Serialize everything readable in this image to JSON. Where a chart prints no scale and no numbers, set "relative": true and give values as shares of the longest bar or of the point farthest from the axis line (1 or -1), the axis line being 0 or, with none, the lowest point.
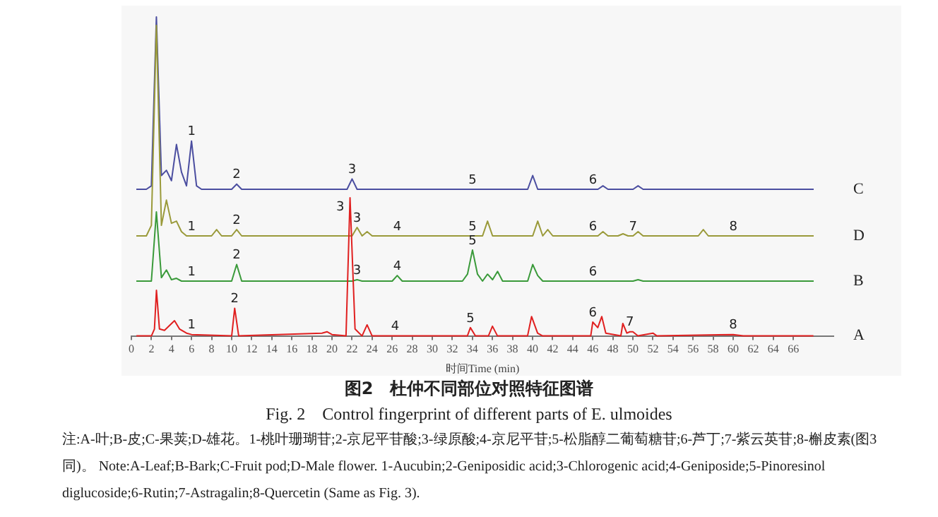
{
  "chart_data": [
    {
      "type": "line",
      "relative": true,
      "categories": [
        null,
        null,
        null,
        null,
        null,
        null,
        null,
        null,
        null,
        null,
        null,
        "1",
        null,
        null,
        null,
        null,
        null,
        null,
        null,
        null,
        "2",
        null,
        null,
        null,
        null,
        null,
        null,
        null,
        null,
        null,
        null,
        null,
        null,
        null,
        null,
        null,
        null,
        null,
        null,
        null,
        null,
        null,
        null,
        "3",
        null,
        null,
        null,
        null,
        null,
        null,
        null,
        null,
        null,
        null,
        null,
        null,
        null,
        null,
        null,
        null,
        null,
        null,
        null,
        null,
        null,
        null,
        null,
        "5",
        null,
        null,
        null,
        null,
        null,
        null,
        null,
        null,
        null,
        null,
        null,
        null,
        null,
        null,
        null,
        null,
        null,
        null,
        null,
        null,
        null,
        null,
        null,
        "6",
        null,
        null,
        null,
        null,
        null,
        null,
        null,
        null,
        null,
        null,
        null,
        null,
        null,
        null,
        null,
        null,
        null,
        null,
        null,
        null,
        null,
        null,
        null,
        null,
        null,
        null,
        null,
        null,
        null,
        null,
        null,
        null,
        null,
        null,
        null,
        null,
        null,
        null,
        null,
        null,
        null,
        null,
        null,
        null
      ],
      "series": [
        {
          "name": "C",
          "color": "#4b4ea0",
          "values": [
            0,
            0,
            0,
            0.02,
            1,
            0.08,
            0.11,
            0.05,
            0.26,
            0.1,
            0.02,
            0.28,
            0.02,
            0,
            0,
            0,
            0,
            0,
            0,
            0,
            0.03,
            0,
            0,
            0,
            0,
            0,
            0,
            0,
            0,
            0,
            0,
            0,
            0,
            0,
            0,
            0,
            0,
            0,
            0,
            0,
            0,
            0,
            0,
            0.06,
            0,
            0,
            0,
            0,
            0,
            0,
            0,
            0,
            0,
            0,
            0,
            0,
            0,
            0,
            0,
            0,
            0,
            0,
            0,
            0,
            0,
            0,
            0,
            0,
            0,
            0,
            0,
            0,
            0,
            0,
            0,
            0,
            0,
            0,
            0,
            0.08,
            0,
            0,
            0,
            0,
            0,
            0,
            0,
            0,
            0,
            0,
            0,
            0,
            0,
            0.02,
            0,
            0,
            0,
            0,
            0,
            0,
            0.02,
            0,
            0,
            0,
            0,
            0,
            0,
            0,
            0,
            0,
            0,
            0,
            0,
            0,
            0,
            0,
            0,
            0,
            0,
            0,
            0,
            0,
            0,
            0,
            0,
            0,
            0,
            0,
            0,
            0,
            0,
            0,
            0,
            0,
            0,
            0
          ]
        }
      ]
    },
    {
      "type": "line",
      "relative": true,
      "categories": [
        null,
        null,
        null,
        null,
        null,
        null,
        null,
        null,
        null,
        null,
        null,
        "1",
        null,
        null,
        null,
        null,
        null,
        null,
        null,
        null,
        "2",
        null,
        null,
        null,
        null,
        null,
        null,
        null,
        null,
        null,
        null,
        null,
        null,
        null,
        null,
        null,
        null,
        null,
        null,
        null,
        null,
        null,
        null,
        null,
        "3",
        null,
        null,
        null,
        null,
        null,
        null,
        null,
        "4",
        null,
        null,
        null,
        null,
        null,
        null,
        null,
        null,
        null,
        null,
        null,
        null,
        null,
        null,
        "5",
        null,
        null,
        null,
        null,
        null,
        null,
        null,
        null,
        null,
        null,
        null,
        null,
        null,
        null,
        null,
        null,
        null,
        null,
        null,
        null,
        null,
        null,
        null,
        "6",
        null,
        null,
        null,
        null,
        null,
        null,
        null,
        "7",
        null,
        null,
        null,
        null,
        null,
        null,
        null,
        null,
        null,
        null,
        null,
        null,
        null,
        null,
        null,
        null,
        null,
        null,
        null,
        "8",
        null,
        null,
        null,
        null,
        null,
        null,
        null,
        null,
        null,
        null,
        null,
        null,
        null,
        null,
        null,
        null
      ],
      "series": [
        {
          "name": "D",
          "color": "#9a9a3a",
          "values": [
            0,
            0,
            0,
            0.05,
            1,
            0.05,
            0.17,
            0.06,
            0.07,
            0.02,
            0,
            0,
            0,
            0,
            0,
            0,
            0.03,
            0,
            0,
            0,
            0.03,
            0,
            0,
            0,
            0,
            0,
            0,
            0,
            0,
            0,
            0,
            0,
            0,
            0,
            0,
            0,
            0,
            0,
            0,
            0,
            0,
            0,
            0,
            0,
            0.04,
            0,
            0.02,
            0,
            0,
            0,
            0,
            0,
            0,
            0,
            0,
            0,
            0,
            0,
            0,
            0,
            0,
            0,
            0,
            0,
            0,
            0,
            0,
            0,
            0,
            0,
            0.07,
            0,
            0,
            0,
            0,
            0,
            0,
            0,
            0,
            0,
            0.07,
            0,
            0.03,
            0,
            0,
            0,
            0,
            0,
            0,
            0,
            0,
            0,
            0,
            0.02,
            0,
            0,
            0,
            0.01,
            0,
            0,
            0.02,
            0,
            0,
            0,
            0,
            0,
            0,
            0,
            0,
            0,
            0,
            0,
            0,
            0.03,
            0,
            0,
            0,
            0,
            0,
            0,
            0,
            0,
            0,
            0,
            0,
            0,
            0,
            0,
            0,
            0,
            0,
            0,
            0,
            0,
            0,
            0
          ]
        }
      ]
    },
    {
      "type": "line",
      "relative": true,
      "categories": [
        null,
        null,
        null,
        null,
        null,
        null,
        null,
        null,
        null,
        null,
        null,
        "1",
        null,
        null,
        null,
        null,
        null,
        null,
        null,
        null,
        "2",
        null,
        null,
        null,
        null,
        null,
        null,
        null,
        null,
        null,
        null,
        null,
        null,
        null,
        null,
        null,
        null,
        null,
        null,
        null,
        null,
        null,
        null,
        null,
        "3",
        null,
        null,
        null,
        null,
        null,
        null,
        null,
        "4",
        null,
        null,
        null,
        null,
        null,
        null,
        null,
        null,
        null,
        null,
        null,
        null,
        null,
        null,
        "5",
        null,
        null,
        null,
        null,
        null,
        null,
        null,
        null,
        null,
        null,
        null,
        null,
        null,
        null,
        null,
        null,
        null,
        null,
        null,
        null,
        null,
        null,
        null,
        "6",
        null,
        null,
        null,
        null,
        null,
        null,
        null,
        null,
        null,
        null,
        null,
        null,
        null,
        null,
        null,
        null,
        null,
        null,
        null,
        null,
        null,
        null,
        null,
        null,
        null,
        null,
        null,
        null,
        null,
        null,
        null,
        null,
        null,
        null,
        null,
        null,
        null,
        null,
        null,
        null,
        null,
        null,
        null,
        null
      ],
      "series": [
        {
          "name": "B",
          "color": "#3a9a3a",
          "values": [
            0,
            0,
            0,
            0,
            1,
            0.05,
            0.16,
            0.02,
            0.04,
            0,
            0,
            0,
            0,
            0,
            0,
            0,
            0,
            0,
            0,
            0,
            0.24,
            0,
            0,
            0,
            0,
            0,
            0,
            0,
            0,
            0,
            0,
            0,
            0,
            0,
            0,
            0,
            0,
            0,
            0,
            0,
            0,
            0,
            0,
            0,
            0.02,
            0,
            0,
            0,
            0,
            0,
            0,
            0,
            0.08,
            0,
            0,
            0,
            0,
            0,
            0,
            0,
            0,
            0,
            0,
            0,
            0,
            0,
            0.1,
            0.45,
            0.1,
            0,
            0.1,
            0.02,
            0.14,
            0,
            0,
            0,
            0,
            0,
            0,
            0.24,
            0.08,
            0,
            0,
            0,
            0,
            0,
            0,
            0,
            0,
            0,
            0,
            0,
            0,
            0,
            0,
            0,
            0,
            0,
            0,
            0,
            0.02,
            0,
            0,
            0,
            0,
            0,
            0,
            0,
            0,
            0,
            0,
            0,
            0,
            0,
            0,
            0,
            0,
            0,
            0,
            0,
            0,
            0,
            0,
            0,
            0,
            0,
            0,
            0,
            0,
            0,
            0,
            0,
            0,
            0,
            0,
            0
          ]
        }
      ]
    },
    {
      "type": "line",
      "relative": true,
      "tick_labels": "x",
      "xlim": [
        0,
        70
      ],
      "xticks": [
        0,
        2,
        4,
        6,
        8,
        10,
        12,
        14,
        16,
        18,
        20,
        22,
        24,
        26,
        28,
        30,
        32,
        34,
        36,
        38,
        40,
        42,
        44,
        46,
        48,
        50,
        52,
        54,
        56,
        58,
        60,
        62,
        64,
        66
      ],
      "xlabel": "时间Time (min)",
      "title": "图2　杜仲不同部位对照特征图谱",
      "subtitle": "Fig. 2　Control fingerprint of different parts of E. ulmoides",
      "series": [
        {
          "name": "A",
          "color": "#e02020",
          "x": [
            0.5,
            2.0,
            2.3,
            2.5,
            2.8,
            3.3,
            4.3,
            4.8,
            5.5,
            6.0,
            10.0,
            10.3,
            10.7,
            19.0,
            19.5,
            20.0,
            21.4,
            21.8,
            22.3,
            23.0,
            23.5,
            24.0,
            26.3,
            33.5,
            33.8,
            34.3,
            35.6,
            36.0,
            36.5,
            39.5,
            39.9,
            40.5,
            41.0,
            45.8,
            46.0,
            46.5,
            46.9,
            47.3,
            48.8,
            49.0,
            49.4,
            49.7,
            50.0,
            50.5,
            52.0,
            52.4,
            60.0,
            61.0,
            68.0
          ],
          "values": [
            0,
            0,
            0.05,
            0.33,
            0.05,
            0.04,
            0.11,
            0.05,
            0.02,
            0.01,
            0,
            0.2,
            0,
            0.02,
            0.03,
            0.01,
            0,
            1,
            0.05,
            0,
            0.08,
            0,
            0,
            0,
            0.06,
            0,
            0,
            0.07,
            0,
            0,
            0.14,
            0.02,
            0,
            0,
            0.1,
            0.06,
            0.14,
            0.02,
            0,
            0.09,
            0.02,
            0.03,
            0.03,
            0,
            0.02,
            0,
            0.01,
            0,
            0
          ]
        }
      ],
      "annotations": [
        {
          "text": "1",
          "x": 6.0,
          "y": 0.01
        },
        {
          "text": "2",
          "x": 10.3,
          "y": 0.2
        },
        {
          "text": "3",
          "x": 21.8,
          "y": 1
        },
        {
          "text": "4",
          "x": 26.3,
          "y": 0
        },
        {
          "text": "5",
          "x": 33.8,
          "y": 0.06
        },
        {
          "text": "6",
          "x": 46.0,
          "y": 0.1
        },
        {
          "text": "7",
          "x": 49.7,
          "y": 0.03
        },
        {
          "text": "8",
          "x": 60.0,
          "y": 0.01
        },
        "注:A-叶;B-皮;C-果荚;D-雄花。1-桃叶珊瑚苷;2-京尼平苷酸;3-绿原酸;4-京尼平苷;5-松脂醇二葡萄糖苷;6-芦丁;7-紫云英苷;8-槲皮素(图3同)。",
        "Note:A-Leaf;B-Bark;C-Fruit pod;D-Male flower. 1-Aucubin;2-Geniposidic acid;3-Chlorogenic acid;4-Geniposide;5-Pinoresinol diglucoside;6-Rutin;7-Astragalin;8-Quercetin (Same as Fig. 3)."
      ]
    }
  ]
}
